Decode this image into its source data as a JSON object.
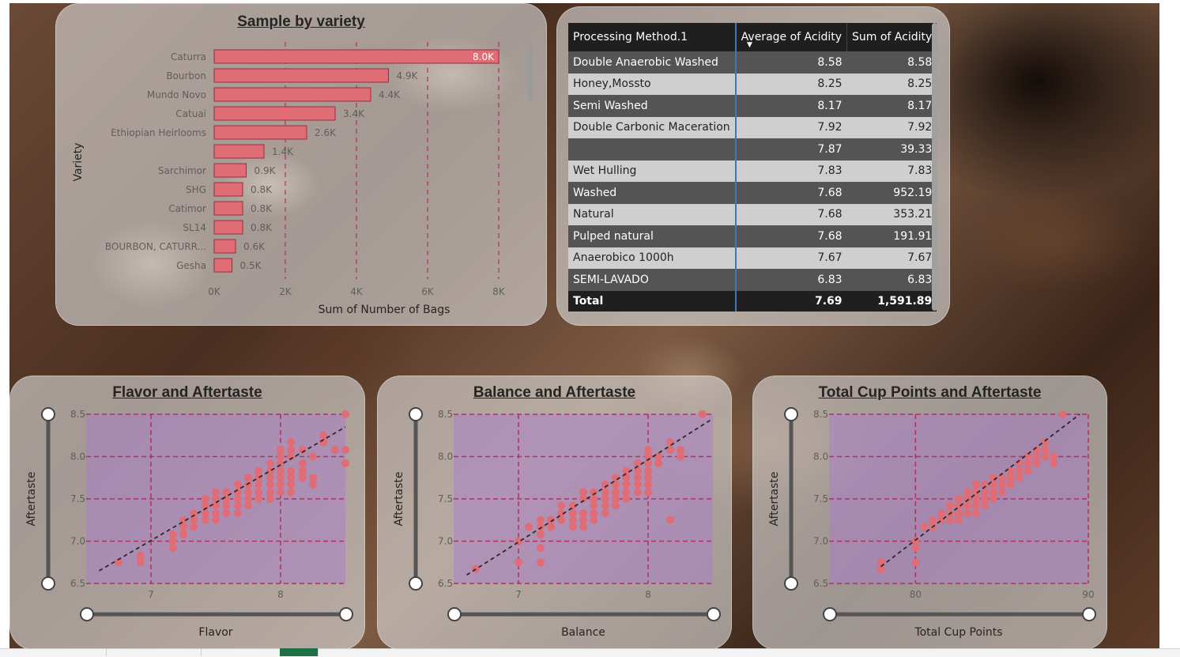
{
  "colors": {
    "bar": "#e06c75",
    "grid": "#b03060",
    "plot_bg": "rgba(170,120,210,0.45)",
    "trend": "#2a2a2a"
  },
  "variety_chart": {
    "title": "Sample by variety",
    "xlabel": "Sum of Number of Bags",
    "ylabel": "Variety",
    "x_ticks": [
      "0K",
      "2K",
      "4K",
      "6K",
      "8K"
    ],
    "chart_data": {
      "type": "bar",
      "categories": [
        "Caturra",
        "Bourbon",
        "Mundo Novo",
        "Catuai",
        "Ethiopian Heirlooms",
        "",
        "Sarchimor",
        "SHG",
        "Catimor",
        "SL14",
        "BOURBON, CATURR...",
        "Gesha"
      ],
      "values": [
        8000,
        4900,
        4400,
        3400,
        2600,
        1400,
        900,
        800,
        800,
        800,
        600,
        500
      ],
      "labels": [
        "8.0K",
        "4.9K",
        "4.4K",
        "3.4K",
        "2.6K",
        "1.4K",
        "0.9K",
        "0.8K",
        "0.8K",
        "0.8K",
        "0.6K",
        "0.5K"
      ],
      "xlim": [
        0,
        8000
      ]
    }
  },
  "acidity_table": {
    "headers": [
      "Processing Method.1",
      "Average of Acidity",
      "Sum of Acidity"
    ],
    "rows": [
      [
        "Double Anaerobic Washed",
        "8.58",
        "8.58"
      ],
      [
        "Honey,Mossto",
        "8.25",
        "8.25"
      ],
      [
        "Semi Washed",
        "8.17",
        "8.17"
      ],
      [
        "Double Carbonic Maceration",
        "7.92",
        "7.92"
      ],
      [
        "",
        "7.87",
        "39.33"
      ],
      [
        "Wet Hulling",
        "7.83",
        "7.83"
      ],
      [
        "Washed",
        "7.68",
        "952.19"
      ],
      [
        "Natural",
        "7.68",
        "353.21"
      ],
      [
        "Pulped natural",
        "7.68",
        "191.91"
      ],
      [
        "Anaerobico 1000h",
        "7.67",
        "7.67"
      ],
      [
        "SEMI-LAVADO",
        "6.83",
        "6.83"
      ]
    ],
    "total": [
      "Total",
      "7.69",
      "1,591.89"
    ]
  },
  "scatter_charts": [
    {
      "title": "Flavor and Aftertaste",
      "xlabel": "Flavor",
      "ylabel": "Aftertaste",
      "x_ticks": [
        "7",
        "8"
      ],
      "y_ticks": [
        "8.5",
        "8.0",
        "7.5",
        "7.0",
        "6.5"
      ],
      "chart_data": {
        "type": "scatter",
        "xlim": [
          6.5,
          8.5
        ],
        "ylim": [
          6.5,
          8.5
        ],
        "points": [
          [
            6.75,
            6.75
          ],
          [
            6.92,
            6.75
          ],
          [
            6.92,
            6.83
          ],
          [
            7.17,
            6.92
          ],
          [
            7.17,
            7.0
          ],
          [
            7.17,
            7.08
          ],
          [
            7.25,
            7.08
          ],
          [
            7.25,
            7.17
          ],
          [
            7.25,
            7.25
          ],
          [
            7.33,
            7.17
          ],
          [
            7.33,
            7.25
          ],
          [
            7.33,
            7.33
          ],
          [
            7.42,
            7.25
          ],
          [
            7.42,
            7.33
          ],
          [
            7.42,
            7.42
          ],
          [
            7.42,
            7.5
          ],
          [
            7.5,
            7.25
          ],
          [
            7.5,
            7.33
          ],
          [
            7.5,
            7.42
          ],
          [
            7.5,
            7.5
          ],
          [
            7.5,
            7.58
          ],
          [
            7.58,
            7.33
          ],
          [
            7.58,
            7.42
          ],
          [
            7.58,
            7.5
          ],
          [
            7.58,
            7.58
          ],
          [
            7.67,
            7.33
          ],
          [
            7.67,
            7.42
          ],
          [
            7.67,
            7.5
          ],
          [
            7.67,
            7.58
          ],
          [
            7.67,
            7.67
          ],
          [
            7.75,
            7.42
          ],
          [
            7.75,
            7.5
          ],
          [
            7.75,
            7.58
          ],
          [
            7.75,
            7.67
          ],
          [
            7.75,
            7.75
          ],
          [
            7.83,
            7.5
          ],
          [
            7.83,
            7.58
          ],
          [
            7.83,
            7.67
          ],
          [
            7.83,
            7.75
          ],
          [
            7.83,
            7.83
          ],
          [
            7.92,
            7.5
          ],
          [
            7.92,
            7.58
          ],
          [
            7.92,
            7.67
          ],
          [
            7.92,
            7.75
          ],
          [
            7.92,
            7.83
          ],
          [
            7.92,
            7.92
          ],
          [
            8.0,
            7.58
          ],
          [
            8.0,
            7.67
          ],
          [
            8.0,
            7.75
          ],
          [
            8.0,
            7.83
          ],
          [
            8.0,
            7.92
          ],
          [
            8.0,
            8.0
          ],
          [
            8.0,
            8.08
          ],
          [
            8.08,
            7.58
          ],
          [
            8.08,
            7.67
          ],
          [
            8.08,
            7.75
          ],
          [
            8.08,
            7.83
          ],
          [
            8.08,
            8.0
          ],
          [
            8.08,
            8.08
          ],
          [
            8.08,
            8.17
          ],
          [
            8.17,
            7.75
          ],
          [
            8.17,
            7.83
          ],
          [
            8.17,
            7.92
          ],
          [
            8.17,
            8.08
          ],
          [
            8.25,
            7.67
          ],
          [
            8.25,
            7.75
          ],
          [
            8.25,
            8.0
          ],
          [
            8.33,
            8.17
          ],
          [
            8.33,
            8.25
          ],
          [
            8.42,
            8.08
          ],
          [
            8.5,
            8.08
          ],
          [
            8.5,
            7.92
          ],
          [
            8.5,
            8.5
          ]
        ],
        "trend": [
          [
            6.6,
            6.65
          ],
          [
            8.5,
            8.35
          ]
        ]
      }
    },
    {
      "title": "Balance and Aftertaste",
      "xlabel": "Balance",
      "ylabel": "Aftertaste",
      "x_ticks": [
        "7",
        "8"
      ],
      "y_ticks": [
        "8.5",
        "8.0",
        "7.5",
        "7.0",
        "6.5"
      ],
      "chart_data": {
        "type": "scatter",
        "xlim": [
          6.5,
          8.5
        ],
        "ylim": [
          6.5,
          8.5
        ],
        "points": [
          [
            6.67,
            6.67
          ],
          [
            7.0,
            6.75
          ],
          [
            7.0,
            7.0
          ],
          [
            7.08,
            7.17
          ],
          [
            7.17,
            7.08
          ],
          [
            7.17,
            7.17
          ],
          [
            7.17,
            7.25
          ],
          [
            7.17,
            6.75
          ],
          [
            7.17,
            6.92
          ],
          [
            7.25,
            7.17
          ],
          [
            7.25,
            7.25
          ],
          [
            7.33,
            7.25
          ],
          [
            7.33,
            7.33
          ],
          [
            7.33,
            7.42
          ],
          [
            7.42,
            7.17
          ],
          [
            7.42,
            7.25
          ],
          [
            7.42,
            7.33
          ],
          [
            7.42,
            7.42
          ],
          [
            7.5,
            7.17
          ],
          [
            7.5,
            7.25
          ],
          [
            7.5,
            7.33
          ],
          [
            7.5,
            7.5
          ],
          [
            7.5,
            7.58
          ],
          [
            7.58,
            7.25
          ],
          [
            7.58,
            7.33
          ],
          [
            7.58,
            7.42
          ],
          [
            7.58,
            7.5
          ],
          [
            7.58,
            7.58
          ],
          [
            7.67,
            7.33
          ],
          [
            7.67,
            7.42
          ],
          [
            7.67,
            7.5
          ],
          [
            7.67,
            7.58
          ],
          [
            7.67,
            7.67
          ],
          [
            7.75,
            7.42
          ],
          [
            7.75,
            7.5
          ],
          [
            7.75,
            7.58
          ],
          [
            7.75,
            7.67
          ],
          [
            7.75,
            7.75
          ],
          [
            7.83,
            7.5
          ],
          [
            7.83,
            7.58
          ],
          [
            7.83,
            7.67
          ],
          [
            7.83,
            7.75
          ],
          [
            7.83,
            7.83
          ],
          [
            7.92,
            7.58
          ],
          [
            7.92,
            7.67
          ],
          [
            7.92,
            7.75
          ],
          [
            7.92,
            7.83
          ],
          [
            7.92,
            7.92
          ],
          [
            8.0,
            7.58
          ],
          [
            8.0,
            7.67
          ],
          [
            8.0,
            7.75
          ],
          [
            8.0,
            7.83
          ],
          [
            8.0,
            7.92
          ],
          [
            8.0,
            8.0
          ],
          [
            8.0,
            8.08
          ],
          [
            8.08,
            7.92
          ],
          [
            8.08,
            8.0
          ],
          [
            8.17,
            8.08
          ],
          [
            8.17,
            8.17
          ],
          [
            8.17,
            7.25
          ],
          [
            8.25,
            8.0
          ],
          [
            8.25,
            8.08
          ],
          [
            8.42,
            8.5
          ]
        ],
        "trend": [
          [
            6.6,
            6.6
          ],
          [
            8.5,
            8.45
          ]
        ]
      }
    },
    {
      "title": "Total Cup Points and Aftertaste",
      "xlabel": "Total Cup Points",
      "ylabel": "Aftertaste",
      "x_ticks": [
        "80",
        "90"
      ],
      "y_ticks": [
        "8.5",
        "8.0",
        "7.5",
        "7.0",
        "6.5"
      ],
      "chart_data": {
        "type": "scatter",
        "xlim": [
          75,
          90
        ],
        "ylim": [
          6.5,
          8.5
        ],
        "points": [
          [
            78,
            6.67
          ],
          [
            78,
            6.75
          ],
          [
            80,
            6.75
          ],
          [
            80,
            6.92
          ],
          [
            80,
            7.0
          ],
          [
            80.5,
            7.17
          ],
          [
            81,
            7.17
          ],
          [
            81,
            7.25
          ],
          [
            81.5,
            7.25
          ],
          [
            81.5,
            7.33
          ],
          [
            82,
            7.25
          ],
          [
            82,
            7.33
          ],
          [
            82,
            7.42
          ],
          [
            82.5,
            7.25
          ],
          [
            82.5,
            7.33
          ],
          [
            82.5,
            7.42
          ],
          [
            82.5,
            7.5
          ],
          [
            83,
            7.33
          ],
          [
            83,
            7.42
          ],
          [
            83,
            7.5
          ],
          [
            83,
            7.58
          ],
          [
            83.5,
            7.33
          ],
          [
            83.5,
            7.42
          ],
          [
            83.5,
            7.5
          ],
          [
            83.5,
            7.58
          ],
          [
            83.5,
            7.67
          ],
          [
            84,
            7.42
          ],
          [
            84,
            7.5
          ],
          [
            84,
            7.58
          ],
          [
            84,
            7.67
          ],
          [
            84.5,
            7.5
          ],
          [
            84.5,
            7.58
          ],
          [
            84.5,
            7.67
          ],
          [
            84.5,
            7.75
          ],
          [
            85,
            7.58
          ],
          [
            85,
            7.67
          ],
          [
            85,
            7.75
          ],
          [
            85.5,
            7.67
          ],
          [
            85.5,
            7.75
          ],
          [
            85.5,
            7.83
          ],
          [
            86,
            7.75
          ],
          [
            86,
            7.83
          ],
          [
            86,
            7.92
          ],
          [
            86.5,
            7.83
          ],
          [
            86.5,
            7.92
          ],
          [
            86.5,
            8.0
          ],
          [
            87,
            7.92
          ],
          [
            87,
            8.0
          ],
          [
            87,
            8.08
          ],
          [
            87.5,
            8.0
          ],
          [
            87.5,
            8.08
          ],
          [
            87.5,
            8.17
          ],
          [
            88,
            8.0
          ],
          [
            88,
            7.92
          ],
          [
            88.5,
            8.5
          ]
        ],
        "trend": [
          [
            78,
            6.7
          ],
          [
            89.5,
            8.5
          ]
        ]
      }
    }
  ]
}
